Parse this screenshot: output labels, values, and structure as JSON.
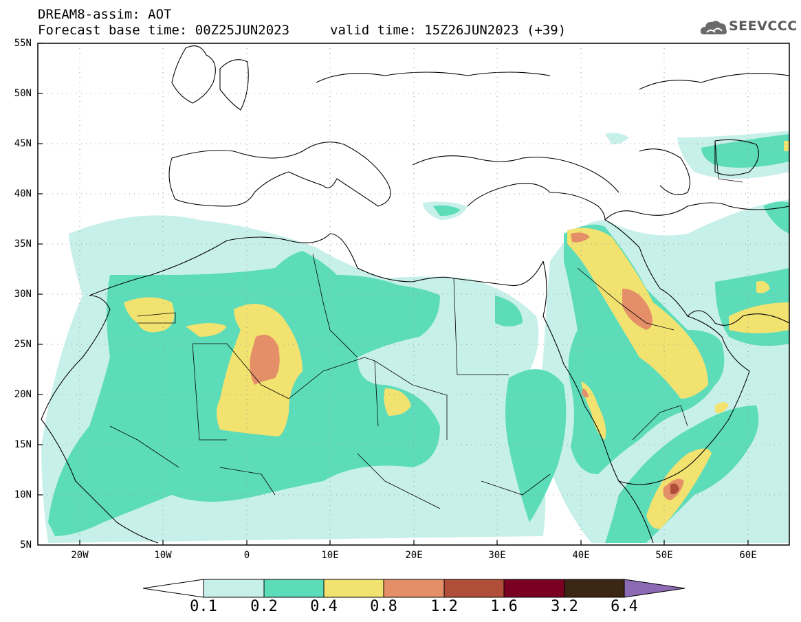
{
  "header": {
    "title_line1": "DREAM8-assim: AOT",
    "title_line2": "Forecast base time: 00Z25JUN2023",
    "valid_time": "valid time: 15Z26JUN2023 (+39)",
    "logo_text": "SEEVCCC"
  },
  "map": {
    "lat_range": [
      5,
      55
    ],
    "lon_range": [
      -25,
      65
    ],
    "lat_labels": [
      "55N",
      "50N",
      "45N",
      "40N",
      "35N",
      "30N",
      "25N",
      "20N",
      "15N",
      "10N",
      "5N"
    ],
    "lon_labels": [
      "20W",
      "10W",
      "0",
      "10E",
      "20E",
      "30E",
      "40E",
      "50E",
      "60E"
    ]
  },
  "colorbar": {
    "levels": [
      "0.1",
      "0.2",
      "0.4",
      "0.8",
      "1.2",
      "1.6",
      "3.2",
      "6.4"
    ],
    "colors": [
      "#c8f0ea",
      "#5cdcb9",
      "#f2e270",
      "#e58f68",
      "#b04e3a",
      "#7a0022",
      "#3c2614",
      "#8c6ab4"
    ],
    "under_color": "#ffffff"
  }
}
